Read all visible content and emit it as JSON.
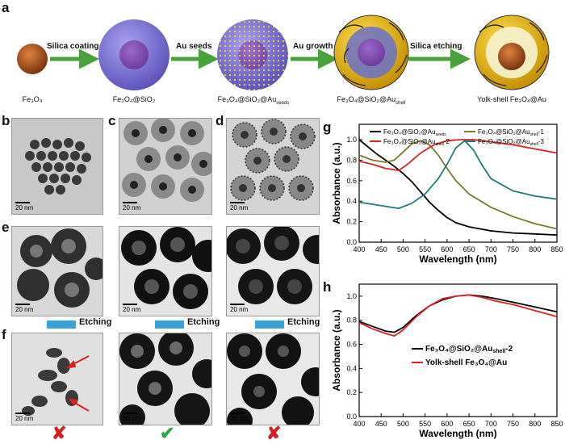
{
  "panel_labels": {
    "a": "a",
    "b": "b",
    "c": "c",
    "d": "d",
    "e": "e",
    "f": "f",
    "g": "g",
    "h": "h"
  },
  "scheme": {
    "steps": [
      "Silica coating",
      "Au seeds",
      "Au growth",
      "Silica etching"
    ],
    "captions": [
      "Fe₃O₄",
      "Fe₃O₄@SiO₂",
      "Fe₃O₄@SiO₂@Au",
      "Fe₃O₄@SiO₂@Au",
      "Yolk-shell Fe₃O₄@Au"
    ],
    "caption_subs": [
      "",
      "",
      "seeds",
      "shell",
      ""
    ]
  },
  "tem": {
    "scale": "20 nm",
    "etching": "Etching"
  },
  "chart_data": [
    {
      "type": "line",
      "panel": "g",
      "xlabel": "Wavelength (nm)",
      "ylabel": "Absorbance (a.u.)",
      "xlim": [
        400,
        850
      ],
      "ylim": [
        0.0,
        1.15
      ],
      "xticks": [
        400,
        450,
        500,
        550,
        600,
        650,
        700,
        750,
        800,
        850
      ],
      "yticks": [
        0.0,
        0.2,
        0.4,
        0.6,
        0.8,
        1.0
      ],
      "legend": "top",
      "series": [
        {
          "name": "Fe₃O₄@SiO₂@Au",
          "sub": "seeds",
          "color": "#000000",
          "x": [
            400,
            420,
            440,
            460,
            480,
            500,
            520,
            540,
            560,
            580,
            600,
            620,
            650,
            700,
            750,
            800,
            850
          ],
          "y": [
            1.0,
            0.93,
            0.86,
            0.8,
            0.74,
            0.67,
            0.59,
            0.49,
            0.39,
            0.31,
            0.24,
            0.19,
            0.15,
            0.11,
            0.09,
            0.08,
            0.07
          ]
        },
        {
          "name": "Fe₃O₄@SiO₂@Au",
          "sub": "shell",
          "suffix": "-1",
          "color": "#7a7a2a",
          "x": [
            400,
            430,
            460,
            480,
            500,
            520,
            540,
            560,
            580,
            600,
            620,
            650,
            700,
            750,
            800,
            850
          ],
          "y": [
            0.85,
            0.8,
            0.78,
            0.8,
            0.88,
            0.96,
            0.99,
            0.95,
            0.85,
            0.72,
            0.6,
            0.47,
            0.34,
            0.25,
            0.18,
            0.13
          ]
        },
        {
          "name": "Fe₃O₄@SiO₂@Au",
          "sub": "shell",
          "suffix": "-2",
          "color": "#e02020",
          "x": [
            400,
            430,
            460,
            490,
            510,
            540,
            570,
            600,
            630,
            660,
            700,
            750,
            800,
            850
          ],
          "y": [
            0.79,
            0.76,
            0.72,
            0.7,
            0.76,
            0.87,
            0.95,
            0.99,
            1.0,
            1.0,
            0.98,
            0.95,
            0.91,
            0.87
          ]
        },
        {
          "name": "Fe₃O₄@SiO₂@Au",
          "sub": "shell",
          "suffix": "-3",
          "color": "#1f7a7a",
          "x": [
            400,
            430,
            460,
            490,
            520,
            550,
            580,
            600,
            620,
            640,
            660,
            680,
            700,
            750,
            800,
            850
          ],
          "y": [
            0.39,
            0.37,
            0.35,
            0.33,
            0.38,
            0.47,
            0.62,
            0.76,
            0.92,
            0.99,
            0.9,
            0.75,
            0.62,
            0.5,
            0.45,
            0.42
          ]
        }
      ]
    },
    {
      "type": "line",
      "panel": "h",
      "xlabel": "Wavelength (nm)",
      "ylabel": "Absorbance (a.u.)",
      "xlim": [
        400,
        850
      ],
      "ylim": [
        0.0,
        1.1
      ],
      "xticks": [
        400,
        450,
        500,
        550,
        600,
        650,
        700,
        750,
        800,
        850
      ],
      "yticks": [
        0.0,
        0.2,
        0.4,
        0.6,
        0.8,
        1.0
      ],
      "legend": "center",
      "series": [
        {
          "name": "Fe₃O₄@SiO₂@Au",
          "sub": "shell",
          "suffix": "-2",
          "color": "#000000",
          "x": [
            400,
            430,
            460,
            480,
            500,
            530,
            560,
            590,
            620,
            650,
            680,
            710,
            750,
            800,
            850
          ],
          "y": [
            0.79,
            0.75,
            0.71,
            0.7,
            0.74,
            0.84,
            0.92,
            0.97,
            1.0,
            1.01,
            1.0,
            0.98,
            0.95,
            0.91,
            0.87
          ]
        },
        {
          "name": "Yolk-shell Fe₃O₄@Au",
          "color": "#e02020",
          "x": [
            400,
            430,
            460,
            480,
            500,
            530,
            560,
            590,
            620,
            650,
            680,
            710,
            750,
            800,
            850
          ],
          "y": [
            0.78,
            0.73,
            0.69,
            0.67,
            0.72,
            0.83,
            0.92,
            0.98,
            1.0,
            1.01,
            0.99,
            0.96,
            0.93,
            0.88,
            0.83
          ]
        }
      ]
    }
  ]
}
